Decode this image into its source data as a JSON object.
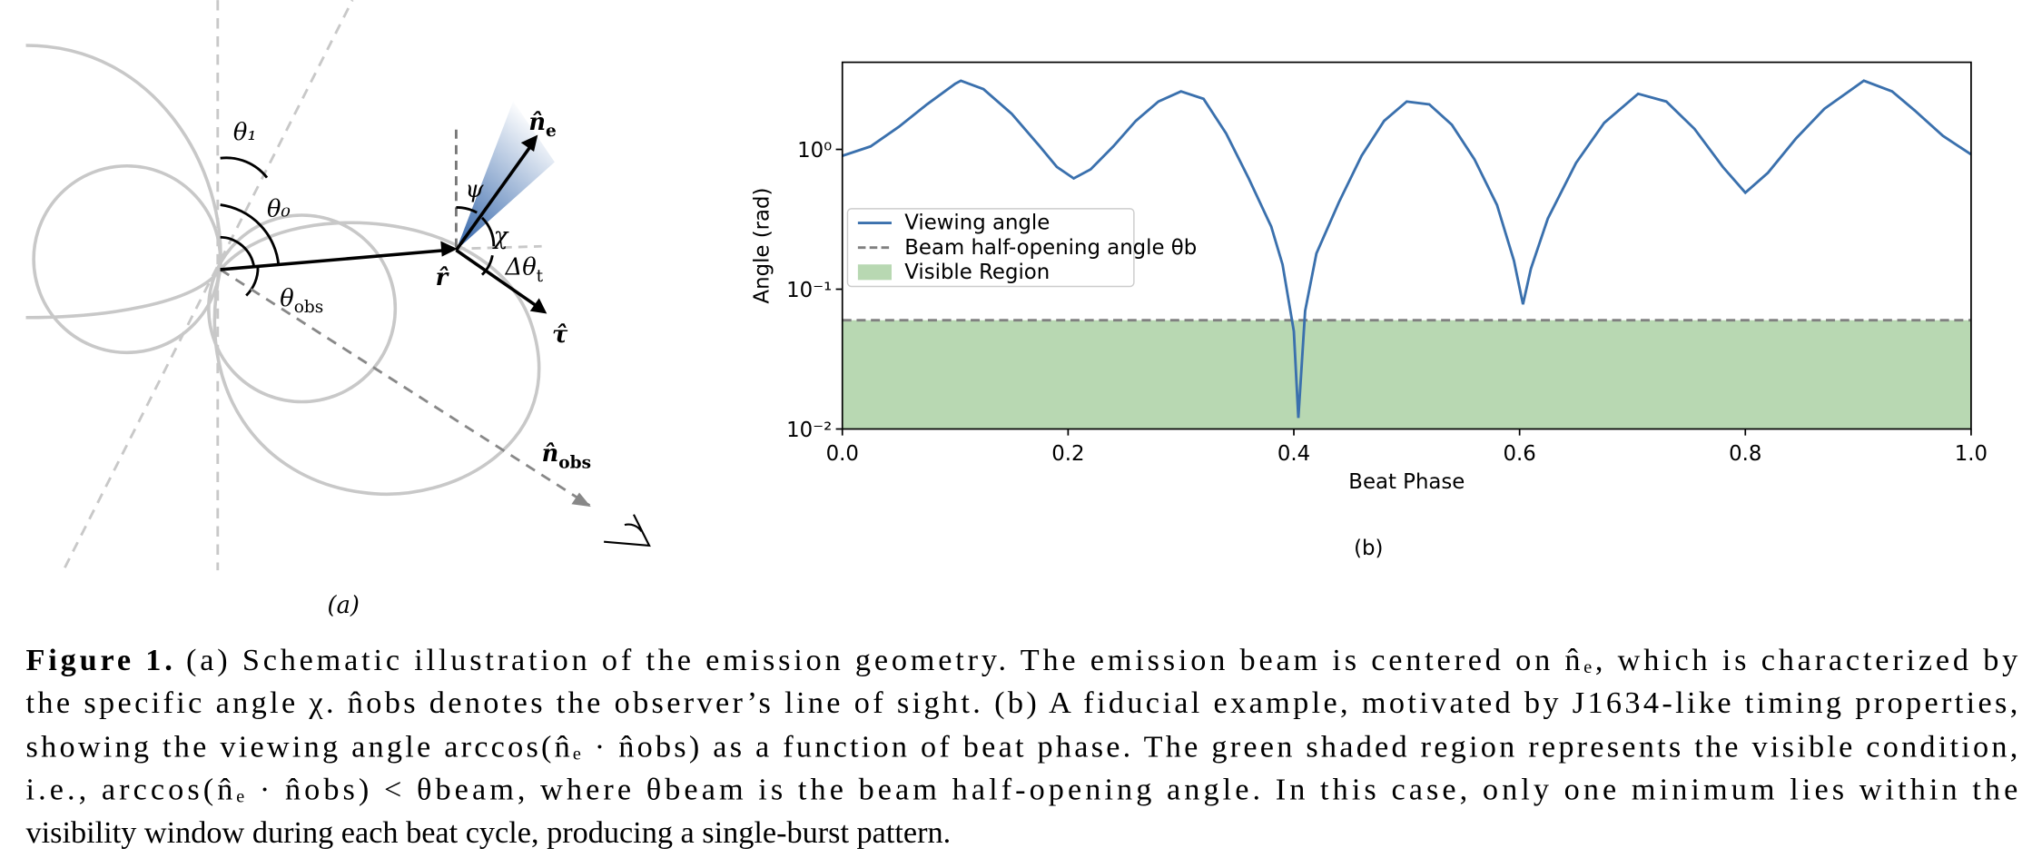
{
  "diagram": {
    "labels": [
      "θ₁",
      "θ₀",
      "θobs",
      "ψ",
      "χ",
      "Δθt",
      "n̂e",
      "r̂",
      "τ̂",
      "n̂obs"
    ],
    "caption": "(a)"
  },
  "chart_data": {
    "type": "line",
    "caption": "(b)",
    "xlabel": "Beat Phase",
    "ylabel": "Angle (rad)",
    "xlim": [
      0,
      1
    ],
    "xticks": [
      {
        "value": 0,
        "label": "0.0"
      },
      0.2,
      0.4,
      0.6,
      0.8,
      {
        "value": 1,
        "label": "1.0"
      }
    ],
    "ylim": [
      0.01,
      4.2
    ],
    "log_y": true,
    "yticks": [
      {
        "value": 0.01,
        "label": "10⁻²"
      },
      {
        "value": 0.1,
        "label": "10⁻¹"
      },
      {
        "value": 1,
        "label": "10⁰"
      }
    ],
    "legend": "upper left",
    "x": [
      0,
      0.025,
      0.05,
      0.075,
      0.1,
      0.105,
      0.125,
      0.15,
      0.175,
      0.19,
      0.205,
      0.22,
      0.24,
      0.26,
      0.28,
      0.3,
      0.32,
      0.34,
      0.36,
      0.38,
      0.39,
      0.4,
      0.404,
      0.41,
      0.42,
      0.44,
      0.46,
      0.48,
      0.5,
      0.52,
      0.54,
      0.56,
      0.58,
      0.595,
      0.603,
      0.61,
      0.625,
      0.65,
      0.675,
      0.705,
      0.73,
      0.755,
      0.78,
      0.8,
      0.82,
      0.845,
      0.87,
      0.905,
      0.93,
      0.95,
      0.975,
      1
    ],
    "series": [
      {
        "name": "Viewing angle",
        "color": "#3a70ad",
        "values": [
          0.9,
          1.05,
          1.45,
          2.1,
          2.95,
          3.1,
          2.7,
          1.8,
          1.05,
          0.75,
          0.62,
          0.72,
          1.05,
          1.6,
          2.2,
          2.6,
          2.3,
          1.3,
          0.62,
          0.28,
          0.15,
          0.05,
          0.012,
          0.07,
          0.18,
          0.42,
          0.9,
          1.6,
          2.2,
          2.1,
          1.5,
          0.85,
          0.4,
          0.16,
          0.078,
          0.14,
          0.32,
          0.8,
          1.55,
          2.5,
          2.2,
          1.4,
          0.75,
          0.49,
          0.68,
          1.2,
          1.95,
          3.1,
          2.6,
          1.9,
          1.25,
          0.92
        ]
      }
    ],
    "threshold": {
      "name": "Beam half-opening angle θb",
      "value": 0.06,
      "color": "#808080"
    },
    "shaded_region": {
      "name": "Visible Region",
      "color": "#b8d8b2"
    }
  },
  "caption": {
    "label": "Figure 1.",
    "lines": [
      "(a) Schematic illustration of the emission geometry. The emission beam is centered on n̂ₑ, which is characterized by",
      "the specific angle χ. n̂obs denotes the observer’s line of sight. (b) A fiducial example, motivated by J1634-like timing properties,",
      "showing the viewing angle arccos(n̂ₑ · n̂obs) as a function of beat phase. The green shaded region represents the visible condition,",
      "i.e., arccos(n̂ₑ · n̂obs) < θbeam, where θbeam is the beam half-opening angle. In this case, only one minimum lies within the",
      "visibility window during each beat cycle, producing a single-burst pattern."
    ]
  }
}
